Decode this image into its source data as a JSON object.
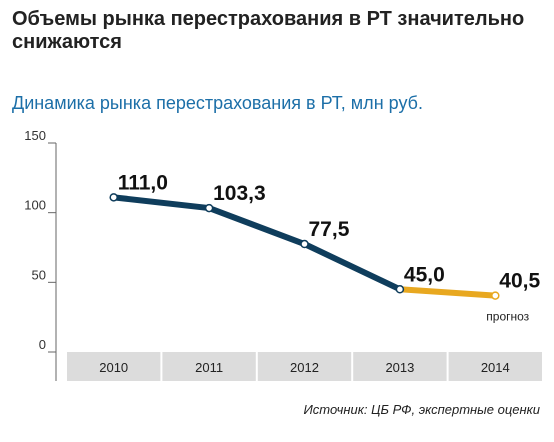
{
  "header": {
    "title": "Объемы рынка перестрахования в РТ значительно снижаются",
    "subtitle": "Динамика рынка перестрахования  в РТ, млн руб."
  },
  "footer": {
    "source": "Источник: ЦБ РФ, экспертные оценки"
  },
  "colors": {
    "actual": "#0f3d5c",
    "forecast": "#e8a820",
    "subtitle": "#1c6fa8",
    "axis_band": "#dcdcdc"
  },
  "chart_data": {
    "type": "line",
    "title": "Динамика рынка перестрахования  в РТ, млн руб.",
    "xlabel": "",
    "ylabel": "",
    "categories": [
      "2010",
      "2011",
      "2012",
      "2013",
      "2014"
    ],
    "ylim": [
      0,
      150
    ],
    "yticks": [
      "0",
      "50",
      "100",
      "150"
    ],
    "grid": false,
    "series": [
      {
        "values": [
          111.0,
          103.3,
          77.5,
          45.0,
          40.5
        ],
        "labels": [
          "111,0",
          "103,3",
          "77,5",
          "45,0",
          "40,5"
        ],
        "forecast_from_index": 3
      }
    ],
    "annotations": [
      {
        "category": "2014",
        "text": "прогноз"
      }
    ]
  }
}
